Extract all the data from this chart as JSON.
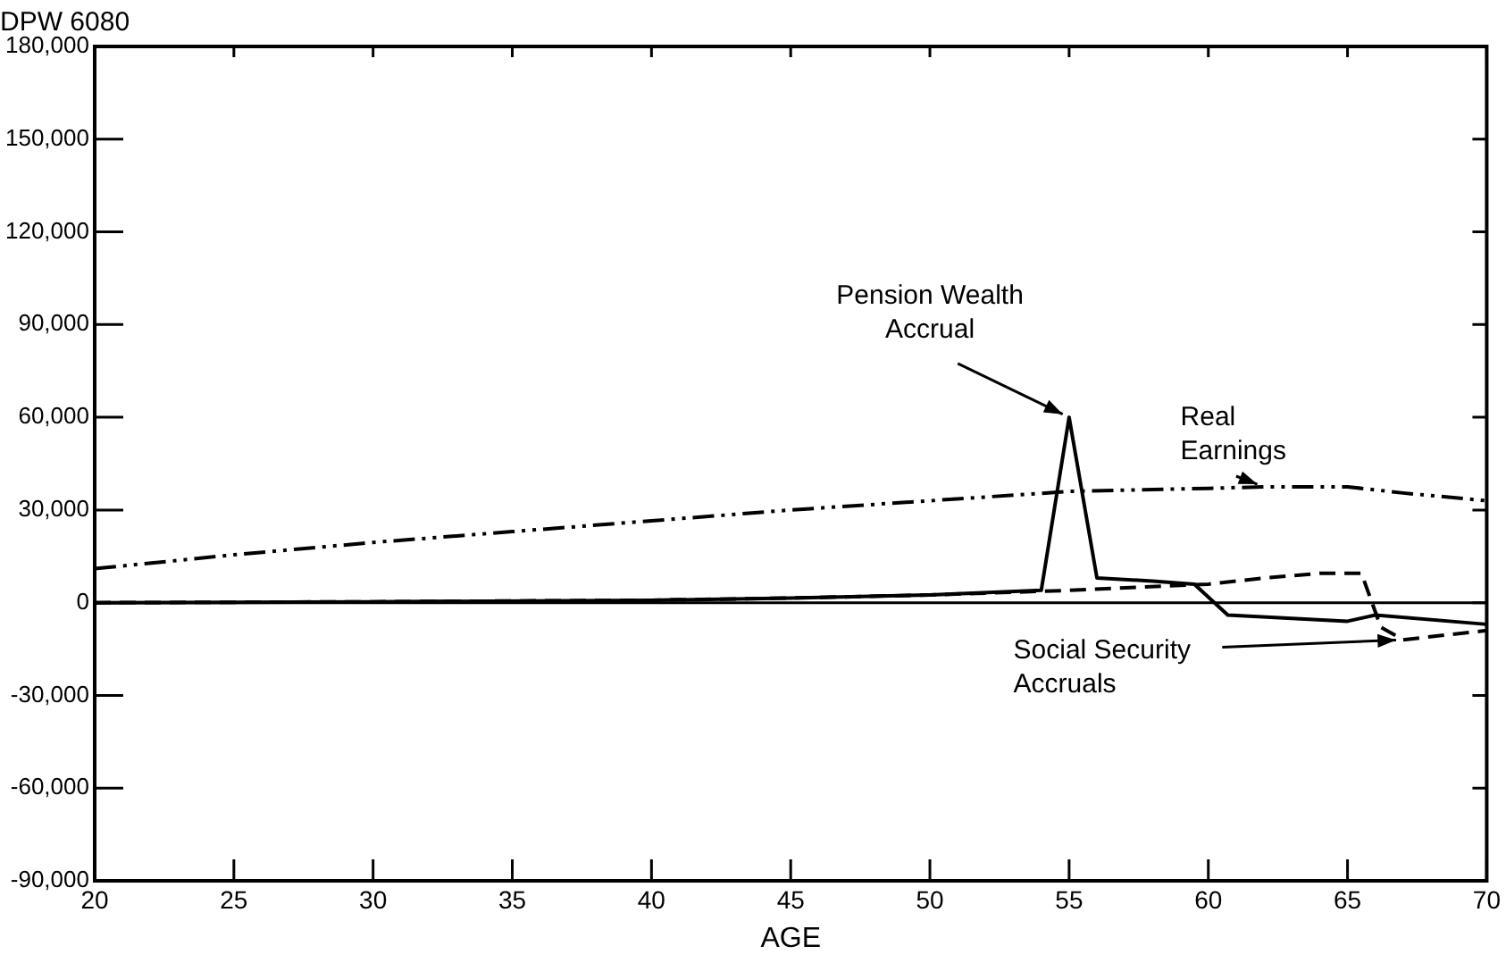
{
  "chart_data": {
    "type": "line",
    "title": "DPW 6080",
    "xlabel": "AGE",
    "xlim": [
      20,
      70
    ],
    "xticks": [
      20,
      25,
      30,
      35,
      40,
      45,
      50,
      55,
      60,
      65,
      70
    ],
    "ylim": [
      -90000,
      180000
    ],
    "yticks": [
      {
        "value": -90000,
        "label": "-90,000"
      },
      {
        "value": -60000,
        "label": "-60,000"
      },
      {
        "value": -30000,
        "label": "-30,000"
      },
      0,
      {
        "value": 30000,
        "label": "30,000"
      },
      {
        "value": 60000,
        "label": "60,000"
      },
      {
        "value": 90000,
        "label": "90,000"
      },
      {
        "value": 120000,
        "label": "120,000"
      },
      {
        "value": 150000,
        "label": "150,000"
      },
      {
        "value": 180000,
        "label": "180,000"
      }
    ],
    "grid": false,
    "legend": false,
    "marker": "none",
    "ref_lines": [
      {
        "axis": "y",
        "value": 0,
        "color": "#000000",
        "line_style": "solid"
      }
    ],
    "series": [
      {
        "name": "Pension Wealth Accrual",
        "color": "#000000",
        "line_style": "solid",
        "x": [
          20,
          30,
          40,
          45,
          50,
          54,
          55,
          56,
          58,
          59.5,
          60.7,
          65,
          66,
          70
        ],
        "values": [
          0,
          300,
          800,
          1500,
          2500,
          4000,
          60000,
          8000,
          7000,
          6000,
          -4000,
          -6000,
          -4000,
          -7000
        ]
      },
      {
        "name": "Real Earnings",
        "color": "#000000",
        "line_style": "dotted",
        "x": [
          20,
          25,
          30,
          35,
          40,
          45,
          50,
          55,
          60,
          62,
          65,
          67,
          70
        ],
        "values": [
          11000,
          15500,
          19500,
          23000,
          26500,
          30000,
          33000,
          36000,
          37000,
          37500,
          37500,
          35500,
          33000
        ]
      },
      {
        "name": "Social Security Accruals",
        "color": "#000000",
        "line_style": "dashed",
        "x": [
          20,
          30,
          40,
          45,
          50,
          55,
          60,
          62,
          64,
          65.5,
          66.2,
          67,
          70
        ],
        "values": [
          0,
          300,
          800,
          1500,
          2500,
          4000,
          6000,
          8000,
          9500,
          9500,
          -8000,
          -12000,
          -9000
        ]
      }
    ]
  }
}
